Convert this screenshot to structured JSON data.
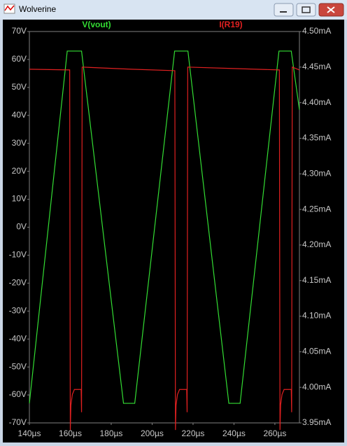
{
  "window": {
    "title": "Wolverine"
  },
  "chart_data": {
    "type": "line",
    "xlim": [
      140,
      272
    ],
    "xticks": [
      {
        "value": 140,
        "label": "140µs"
      },
      {
        "value": 160,
        "label": "160µs"
      },
      {
        "value": 180,
        "label": "180µs"
      },
      {
        "value": 200,
        "label": "200µs"
      },
      {
        "value": 220,
        "label": "220µs"
      },
      {
        "value": 240,
        "label": "240µs"
      },
      {
        "value": 260,
        "label": "260µs"
      }
    ],
    "ylim": [
      -70,
      70
    ],
    "yticks": [
      {
        "value": 70,
        "label": "70V"
      },
      {
        "value": 60,
        "label": "60V"
      },
      {
        "value": 50,
        "label": "50V"
      },
      {
        "value": 40,
        "label": "40V"
      },
      {
        "value": 30,
        "label": "30V"
      },
      {
        "value": 20,
        "label": "20V"
      },
      {
        "value": 10,
        "label": "10V"
      },
      {
        "value": 0,
        "label": "0V"
      },
      {
        "value": -10,
        "label": "-10V"
      },
      {
        "value": -20,
        "label": "-20V"
      },
      {
        "value": -30,
        "label": "-30V"
      },
      {
        "value": -40,
        "label": "-40V"
      },
      {
        "value": -50,
        "label": "-50V"
      },
      {
        "value": -60,
        "label": "-60V"
      },
      {
        "value": -70,
        "label": "-70V"
      }
    ],
    "y2lim": [
      3.95,
      4.5
    ],
    "y2ticks": [
      {
        "value": 4.5,
        "label": "4.50mA"
      },
      {
        "value": 4.45,
        "label": "4.45mA"
      },
      {
        "value": 4.4,
        "label": "4.40mA"
      },
      {
        "value": 4.35,
        "label": "4.35mA"
      },
      {
        "value": 4.3,
        "label": "4.30mA"
      },
      {
        "value": 4.25,
        "label": "4.25mA"
      },
      {
        "value": 4.2,
        "label": "4.20mA"
      },
      {
        "value": 4.15,
        "label": "4.15mA"
      },
      {
        "value": 4.1,
        "label": "4.10mA"
      },
      {
        "value": 4.05,
        "label": "4.05mA"
      },
      {
        "value": 4.0,
        "label": "4.00mA"
      },
      {
        "value": 3.95,
        "label": "3.95mA"
      }
    ],
    "grid": false,
    "series": [
      {
        "name": "V(vout)",
        "color": "#33dd33",
        "x": [
          140,
          158.5,
          165.5,
          186,
          191.5,
          211,
          217.5,
          237.5,
          243,
          262,
          268,
          272
        ],
        "values": [
          -63,
          63,
          63,
          -63,
          -63,
          63,
          63,
          -63,
          -63,
          63,
          63,
          42
        ]
      },
      {
        "name": "I(R19)",
        "color": "#e02020",
        "axis": "y2",
        "x": [
          140,
          159.7,
          160,
          160.3,
          161,
          162,
          165.3,
          165.5,
          165.8,
          190,
          211.1,
          211.4,
          211.7,
          212.4,
          213.4,
          216.9,
          217.1,
          217.4,
          240,
          262.2,
          262.5,
          262.8,
          263.5,
          264.5,
          268,
          268.2,
          268.5,
          272
        ],
        "values": [
          4.447,
          4.446,
          3.94,
          3.975,
          3.99,
          3.997,
          3.997,
          3.965,
          4.45,
          4.447,
          4.445,
          3.94,
          3.975,
          3.99,
          3.997,
          3.997,
          3.965,
          4.45,
          4.448,
          4.446,
          3.94,
          3.975,
          3.99,
          3.997,
          3.997,
          3.965,
          4.45,
          4.446
        ]
      }
    ]
  }
}
